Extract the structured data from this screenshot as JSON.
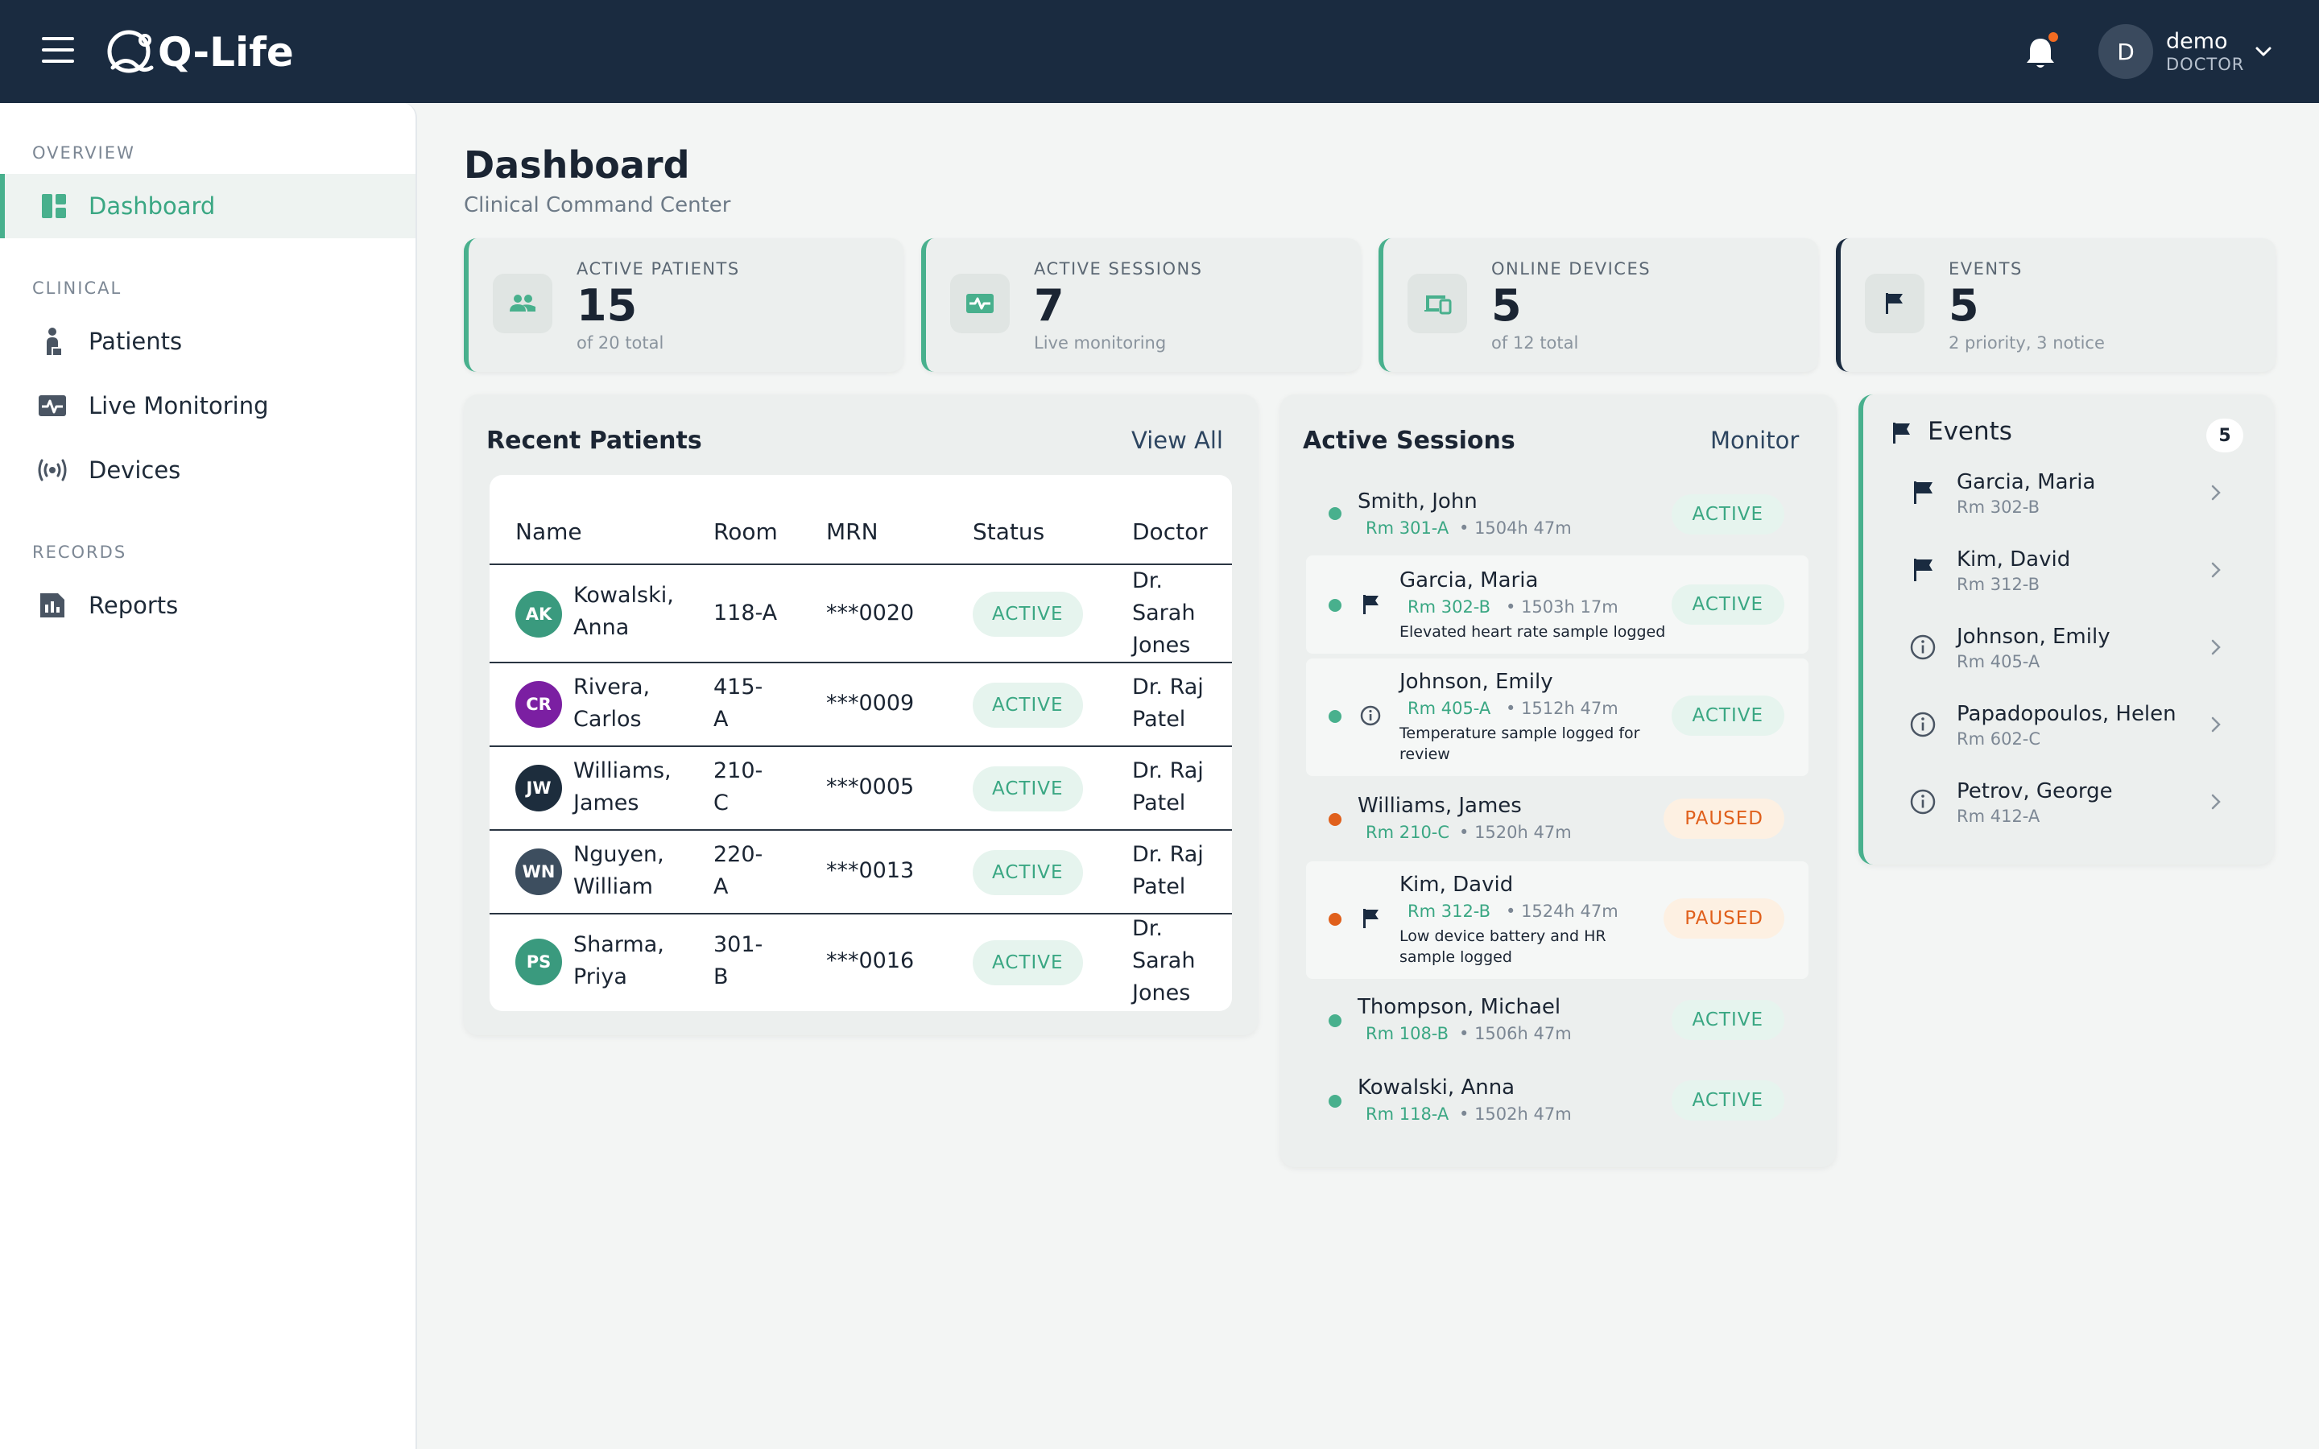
{
  "app": {
    "name": "Q-Life",
    "user": {
      "name": "demo",
      "role": "DOCTOR",
      "initial": "D"
    }
  },
  "icons": {
    "menu": "hamburger-icon",
    "bell": "bell-icon",
    "chevron": "chevron-down-icon"
  },
  "colors": {
    "topbar": "#1a2b40",
    "accent": "#48b08d",
    "paused": "#e0601c",
    "notification": "#f26b21"
  },
  "sidebar": {
    "sections": [
      {
        "label": "OVERVIEW",
        "items": [
          {
            "label": "Dashboard",
            "icon": "dashboard-icon",
            "active": true
          }
        ]
      },
      {
        "label": "CLINICAL",
        "items": [
          {
            "label": "Patients",
            "icon": "patient-icon"
          },
          {
            "label": "Live Monitoring",
            "icon": "pulse-icon"
          },
          {
            "label": "Devices",
            "icon": "broadcast-icon"
          }
        ]
      },
      {
        "label": "RECORDS",
        "items": [
          {
            "label": "Reports",
            "icon": "report-icon"
          }
        ]
      }
    ]
  },
  "header": {
    "title": "Dashboard",
    "subtitle": "Clinical Command Center"
  },
  "stats": [
    {
      "label": "ACTIVE PATIENTS",
      "value": "15",
      "sub": "of 20 total",
      "icon": "people-icon"
    },
    {
      "label": "ACTIVE SESSIONS",
      "value": "7",
      "sub": "Live monitoring",
      "icon": "pulse-icon"
    },
    {
      "label": "ONLINE DEVICES",
      "value": "5",
      "sub": "of 12 total",
      "icon": "devices-icon"
    },
    {
      "label": "EVENTS",
      "value": "5",
      "sub": "2 priority, 3 notice",
      "icon": "flag-icon"
    }
  ],
  "recent_patients": {
    "title": "Recent Patients",
    "link": "View All",
    "columns": [
      "Name",
      "Room",
      "MRN",
      "Status",
      "Doctor"
    ],
    "rows": [
      {
        "initials": "AK",
        "color": "#3a9a7e",
        "name": [
          "Kowalski,",
          "Anna"
        ],
        "room": [
          "118-A"
        ],
        "mrn": "***0020",
        "status": "ACTIVE",
        "doctor": [
          "Dr.",
          "Sarah",
          "Jones"
        ]
      },
      {
        "initials": "CR",
        "color": "#7b1fa2",
        "name": [
          "Rivera,",
          "Carlos"
        ],
        "room": [
          "415-",
          "A"
        ],
        "mrn": "***0009",
        "status": "ACTIVE",
        "doctor": [
          "Dr. Raj",
          "Patel"
        ]
      },
      {
        "initials": "JW",
        "color": "#1d2d3d",
        "name": [
          "Williams,",
          "James"
        ],
        "room": [
          "210-",
          "C"
        ],
        "mrn": "***0005",
        "status": "ACTIVE",
        "doctor": [
          "Dr. Raj",
          "Patel"
        ]
      },
      {
        "initials": "WN",
        "color": "#3d4e5f",
        "name": [
          "Nguyen,",
          "William"
        ],
        "room": [
          "220-",
          "A"
        ],
        "mrn": "***0013",
        "status": "ACTIVE",
        "doctor": [
          "Dr. Raj",
          "Patel"
        ]
      },
      {
        "initials": "PS",
        "color": "#3a9a7e",
        "name": [
          "Sharma,",
          "Priya"
        ],
        "room": [
          "301-",
          "B"
        ],
        "mrn": "***0016",
        "status": "ACTIVE",
        "doctor": [
          "Dr.",
          "Sarah",
          "Jones"
        ]
      }
    ]
  },
  "active_sessions": {
    "title": "Active Sessions",
    "link": "Monitor",
    "rows": [
      {
        "name": "Smith, John",
        "room": "Rm 301-A",
        "time": "1504h 47m",
        "status": "ACTIVE"
      },
      {
        "name": "Garcia, Maria",
        "room": "Rm 302-B",
        "time": "1503h 17m",
        "status": "ACTIVE",
        "flag": "flag",
        "note": [
          "Elevated heart rate sample logged"
        ]
      },
      {
        "name": "Johnson, Emily",
        "room": "Rm 405-A",
        "time": "1512h 47m",
        "status": "ACTIVE",
        "flag": "info",
        "note": [
          "Temperature sample logged for",
          "review"
        ]
      },
      {
        "name": "Williams, James",
        "room": "Rm 210-C",
        "time": "1520h 47m",
        "status": "PAUSED"
      },
      {
        "name": "Kim, David",
        "room": "Rm 312-B",
        "time": "1524h 47m",
        "status": "PAUSED",
        "flag": "flag",
        "note": [
          "Low device battery and HR",
          "sample logged"
        ]
      },
      {
        "name": "Thompson, Michael",
        "room": "Rm 108-B",
        "time": "1506h 47m",
        "status": "ACTIVE"
      },
      {
        "name": "Kowalski, Anna",
        "room": "Rm 118-A",
        "time": "1502h 47m",
        "status": "ACTIVE"
      }
    ]
  },
  "events": {
    "title": "Events",
    "count": "5",
    "rows": [
      {
        "name": "Garcia, Maria",
        "room": "Rm 302-B",
        "type": "flag"
      },
      {
        "name": "Kim, David",
        "room": "Rm 312-B",
        "type": "flag"
      },
      {
        "name": "Johnson, Emily",
        "room": "Rm 405-A",
        "type": "info"
      },
      {
        "name": "Papadopoulos, Helen",
        "room": "Rm 602-C",
        "type": "info"
      },
      {
        "name": "Petrov, George",
        "room": "Rm 412-A",
        "type": "info"
      }
    ]
  }
}
